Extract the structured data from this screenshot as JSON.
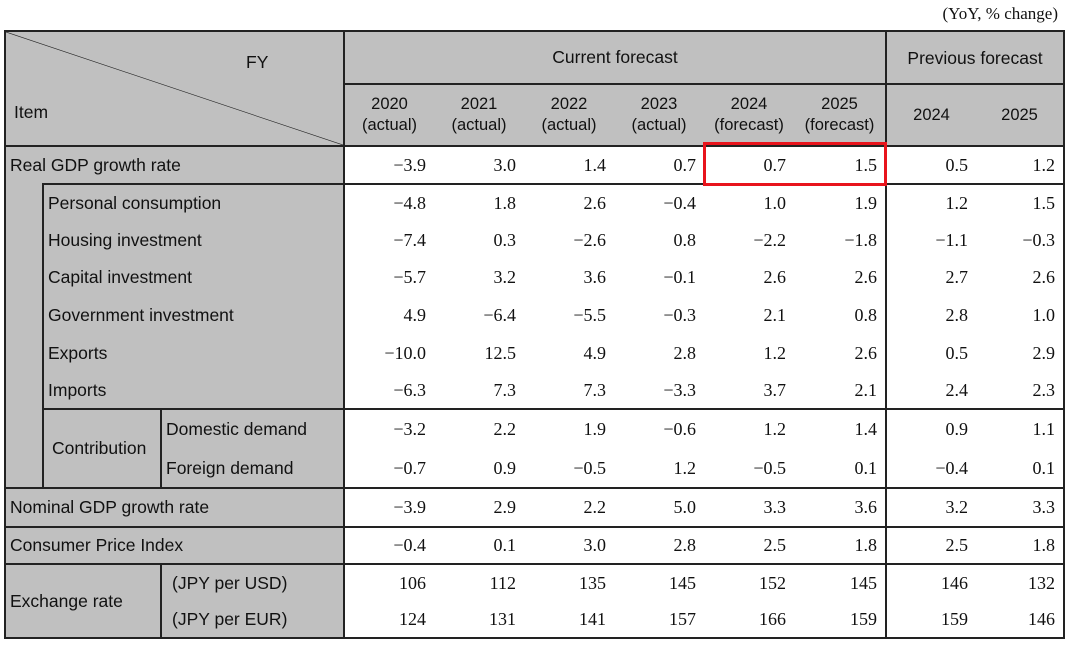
{
  "unit_note": "(YoY, % change)",
  "header": {
    "fy": "FY",
    "item": "Item",
    "current_forecast": "Current forecast",
    "previous_forecast": "Previous forecast",
    "years": [
      {
        "year": "2020",
        "note": "(actual)"
      },
      {
        "year": "2021",
        "note": "(actual)"
      },
      {
        "year": "2022",
        "note": "(actual)"
      },
      {
        "year": "2023",
        "note": "(actual)"
      },
      {
        "year": "2024",
        "note": "(forecast)"
      },
      {
        "year": "2025",
        "note": "(forecast)"
      },
      {
        "year": "2024",
        "note": ""
      },
      {
        "year": "2025",
        "note": ""
      }
    ]
  },
  "highlight_color": "#e8141c",
  "rows": [
    {
      "label": "Real GDP growth rate",
      "values": [
        "−3.9",
        "3.0",
        "1.4",
        "0.7",
        "0.7",
        "1.5",
        "0.5",
        "1.2"
      ]
    },
    {
      "label": "Personal consumption",
      "values": [
        "−4.8",
        "1.8",
        "2.6",
        "−0.4",
        "1.0",
        "1.9",
        "1.2",
        "1.5"
      ]
    },
    {
      "label": "Housing investment",
      "values": [
        "−7.4",
        "0.3",
        "−2.6",
        "0.8",
        "−2.2",
        "−1.8",
        "−1.1",
        "−0.3"
      ]
    },
    {
      "label": "Capital investment",
      "values": [
        "−5.7",
        "3.2",
        "3.6",
        "−0.1",
        "2.6",
        "2.6",
        "2.7",
        "2.6"
      ]
    },
    {
      "label": "Government investment",
      "values": [
        "4.9",
        "−6.4",
        "−5.5",
        "−0.3",
        "2.1",
        "0.8",
        "2.8",
        "1.0"
      ]
    },
    {
      "label": "Exports",
      "values": [
        "−10.0",
        "12.5",
        "4.9",
        "2.8",
        "1.2",
        "2.6",
        "0.5",
        "2.9"
      ]
    },
    {
      "label": "Imports",
      "values": [
        "−6.3",
        "7.3",
        "7.3",
        "−3.3",
        "3.7",
        "2.1",
        "2.4",
        "2.3"
      ]
    },
    {
      "label": "Domestic demand",
      "values": [
        "−3.2",
        "2.2",
        "1.9",
        "−0.6",
        "1.2",
        "1.4",
        "0.9",
        "1.1"
      ]
    },
    {
      "label": "Foreign demand",
      "values": [
        "−0.7",
        "0.9",
        "−0.5",
        "1.2",
        "−0.5",
        "0.1",
        "−0.4",
        "0.1"
      ]
    },
    {
      "label": "Nominal GDP growth rate",
      "values": [
        "−3.9",
        "2.9",
        "2.2",
        "5.0",
        "3.3",
        "3.6",
        "3.2",
        "3.3"
      ]
    },
    {
      "label": "Consumer Price Index",
      "values": [
        "−0.4",
        "0.1",
        "3.0",
        "2.8",
        "2.5",
        "1.8",
        "2.5",
        "1.8"
      ]
    },
    {
      "label": "(JPY per USD)",
      "values": [
        "106",
        "112",
        "135",
        "145",
        "152",
        "145",
        "146",
        "132"
      ]
    },
    {
      "label": "(JPY per EUR)",
      "values": [
        "124",
        "131",
        "141",
        "157",
        "166",
        "159",
        "159",
        "146"
      ]
    }
  ],
  "contribution_label": "Contribution",
  "exchange_rate_label": "Exchange rate"
}
